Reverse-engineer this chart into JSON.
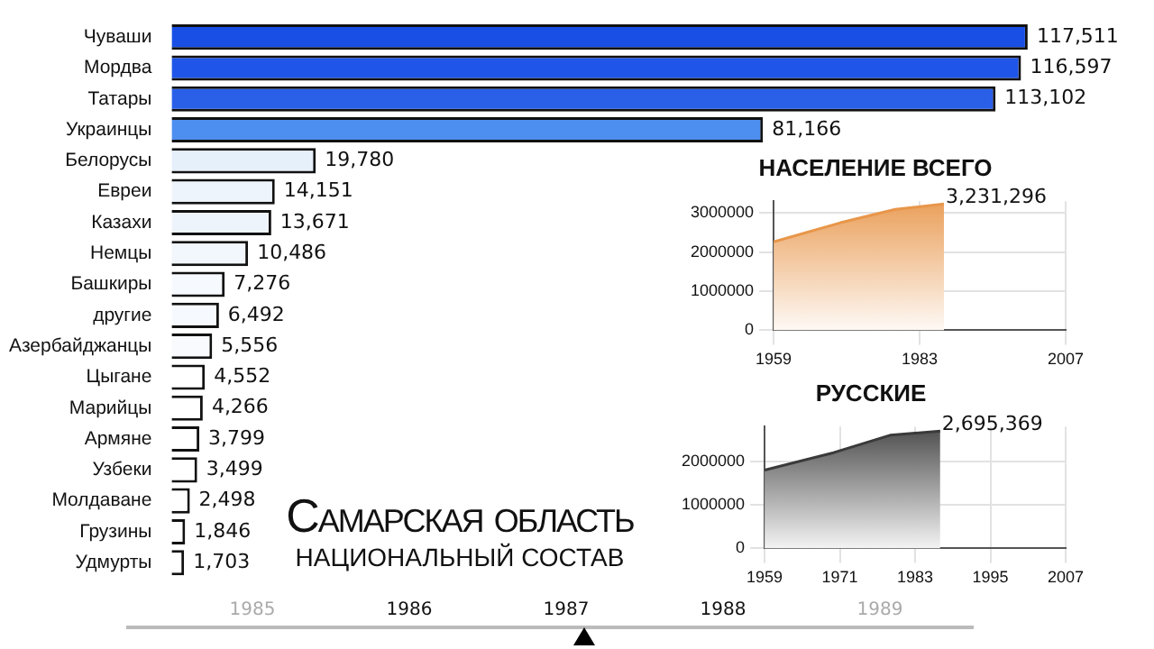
{
  "chart_data": [
    {
      "type": "bar",
      "orientation": "horizontal",
      "title": "Самарская область",
      "subtitle": "НАЦИОНАЛЬНЫЙ СОСТАВ",
      "tick_labels": "y",
      "colors": [
        "#1a4fe6",
        "#1f55e8",
        "#2a5fe8",
        "#4d8ff0",
        "#e6f0fb",
        "#eef4fc",
        "#eef4fc",
        "#f2f6fd",
        "#f6f9fe",
        "#f6f9fe",
        "#f8fafe",
        "#ffffff",
        "#ffffff",
        "#ffffff",
        "#ffffff",
        "#ffffff",
        "#ffffff",
        "#ffffff"
      ],
      "categories": [
        "Чуваши",
        "Мордва",
        "Татары",
        "Украинцы",
        "Белорусы",
        "Евреи",
        "Казахи",
        "Немцы",
        "Башкиры",
        "другие",
        "Азербайджанцы",
        "Цыгане",
        "Марийцы",
        "Армяне",
        "Узбеки",
        "Молдаване",
        "Грузины",
        "Удмурты"
      ],
      "values": [
        117511,
        116597,
        113102,
        81166,
        19780,
        14151,
        13671,
        10486,
        7276,
        6492,
        5556,
        4552,
        4266,
        3799,
        3499,
        2498,
        1846,
        1703
      ],
      "value_labels": [
        "117,511",
        "116,597",
        "113,102",
        "81,166",
        "19,780",
        "14,151",
        "13,671",
        "10,486",
        "7,276",
        "6,492",
        "5,556",
        "4,552",
        "4,266",
        "3,799",
        "3,499",
        "2,498",
        "1,846",
        "1,703"
      ],
      "annotations": [
        "1985",
        "1986",
        "1987",
        "1988",
        "1989"
      ]
    },
    {
      "type": "area",
      "title": "НАСЕЛЕНИЕ ВСЕГО",
      "color": "#e8964a",
      "marker": "none",
      "grid": true,
      "x": [
        1959,
        1970,
        1979,
        1987
      ],
      "values": [
        2260000,
        2750000,
        3090000,
        3231296
      ],
      "value_labels": [
        null,
        null,
        null,
        "3,231,296"
      ],
      "xlim": [
        1959,
        2007
      ],
      "xticks": [
        1959,
        1983,
        2007
      ],
      "ylim": [
        0,
        3300000
      ],
      "yticks": [
        0,
        1000000,
        2000000,
        3000000
      ]
    },
    {
      "type": "area",
      "title": "РУССКИЕ",
      "color": "#3a3a3a",
      "marker": "none",
      "grid": true,
      "x": [
        1959,
        1970,
        1979,
        1987
      ],
      "values": [
        1800000,
        2200000,
        2600000,
        2695369
      ],
      "value_labels": [
        null,
        null,
        null,
        "2,695,369"
      ],
      "xlim": [
        1959,
        2007
      ],
      "xticks": [
        1959,
        1971,
        1983,
        1995,
        2007
      ],
      "ylim": [
        0,
        2800000
      ],
      "yticks": [
        0,
        1000000,
        2000000
      ]
    }
  ]
}
